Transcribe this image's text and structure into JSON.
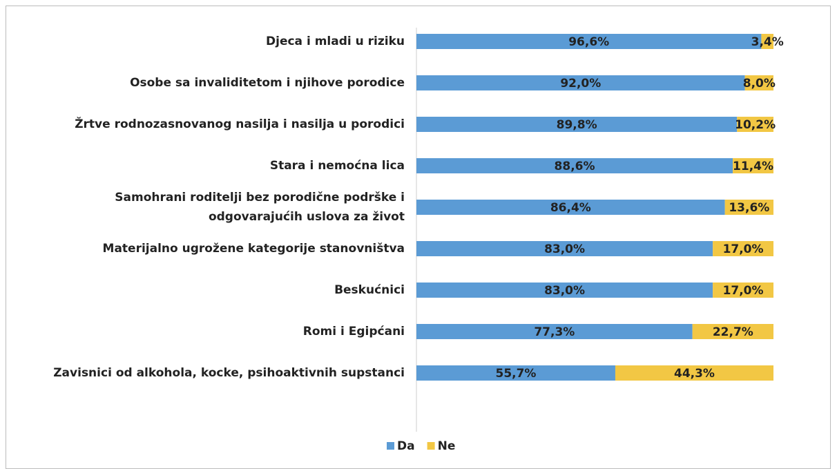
{
  "chart_data": {
    "type": "bar_stacked_horizontal",
    "categories": [
      "Djeca i mladi u riziku",
      "Osobe sa invaliditetom i njihove porodice",
      "Žrtve rodnozasnovanog nasilja i nasilja u porodici",
      "Stara i nemoćna lica",
      "Samohrani roditelji bez porodične podrške i odgovarajućih uslova za život",
      "Materijalno ugrožene kategorije stanovništva",
      "Beskućnici",
      "Romi i Egipćani",
      "Zavisnici od alkohola, kocke, psihoaktivnih supstanci"
    ],
    "series": [
      {
        "name": "Da",
        "color": "#5b9bd5",
        "values": [
          96.6,
          92.0,
          89.8,
          88.6,
          86.4,
          83.0,
          83.0,
          77.3,
          55.7
        ],
        "value_labels": [
          "96,6%",
          "92,0%",
          "89,8%",
          "88,6%",
          "86,4%",
          "83,0%",
          "83,0%",
          "77,3%",
          "55,7%"
        ]
      },
      {
        "name": "Ne",
        "color": "#f2c744",
        "values": [
          3.4,
          8.0,
          10.2,
          11.4,
          13.6,
          17.0,
          17.0,
          22.7,
          44.3
        ],
        "value_labels": [
          "3,4%",
          "8,0%",
          "10,2%",
          "11,4%",
          "13,6%",
          "17,0%",
          "17,0%",
          "22,7%",
          "44,3%"
        ]
      }
    ],
    "xlim": [
      0,
      100
    ],
    "legend": "bottom"
  }
}
